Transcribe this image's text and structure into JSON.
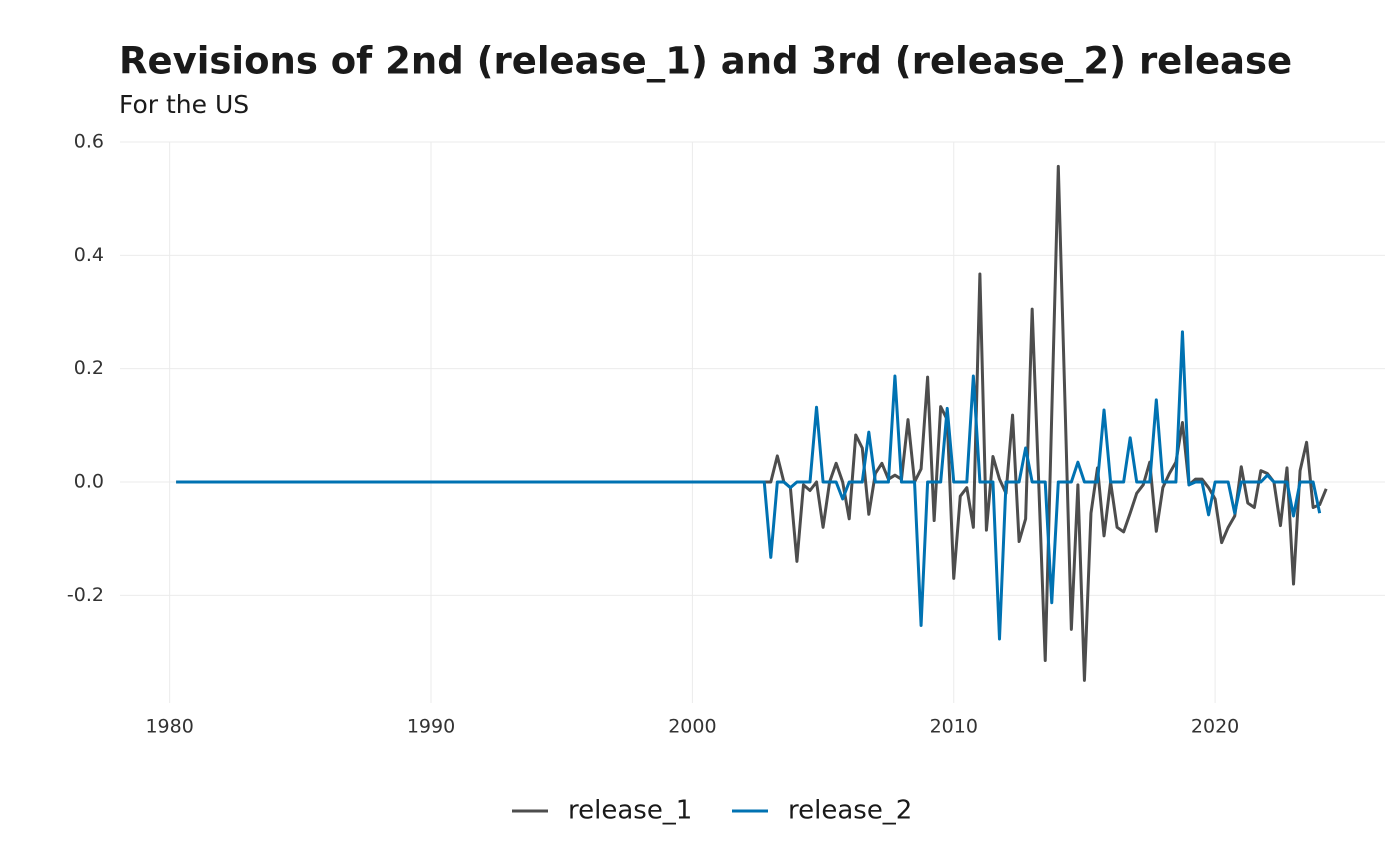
{
  "chart_data": {
    "type": "line",
    "title": "Revisions of 2nd (release_1) and 3rd (release_2) release",
    "subtitle": "For the US",
    "x": [
      1980.25,
      2002.75,
      2003.0,
      2003.25,
      2003.5,
      2003.75,
      2004.0,
      2004.25,
      2004.5,
      2004.75,
      2005.0,
      2005.25,
      2005.5,
      2005.75,
      2006.0,
      2006.25,
      2006.5,
      2006.75,
      2007.0,
      2007.25,
      2007.5,
      2007.75,
      2008.0,
      2008.25,
      2008.5,
      2008.75,
      2009.0,
      2009.25,
      2009.5,
      2009.75,
      2010.0,
      2010.25,
      2010.5,
      2010.75,
      2011.0,
      2011.25,
      2011.5,
      2011.75,
      2012.0,
      2012.25,
      2012.5,
      2012.75,
      2013.0,
      2013.25,
      2013.5,
      2013.75,
      2014.0,
      2014.25,
      2014.5,
      2014.75,
      2015.0,
      2015.25,
      2015.5,
      2015.75,
      2016.0,
      2016.25,
      2016.5,
      2016.75,
      2017.0,
      2017.25,
      2017.5,
      2017.75,
      2018.0,
      2018.25,
      2018.5,
      2018.75,
      2019.0,
      2019.25,
      2019.5,
      2019.75,
      2020.0,
      2020.25,
      2020.5,
      2020.75,
      2021.0,
      2021.25,
      2021.5,
      2021.75,
      2022.0,
      2022.25,
      2022.5,
      2022.75,
      2023.0,
      2023.25,
      2023.5,
      2023.75,
      2024.0,
      2024.25
    ],
    "series": [
      {
        "name": "release_1",
        "color": "#4d4d4d",
        "values": [
          0,
          0,
          0,
          0.046,
          0,
          -0.01,
          -0.14,
          -0.005,
          -0.015,
          0,
          -0.08,
          0,
          0.033,
          0,
          -0.065,
          0.083,
          0.06,
          -0.057,
          0.015,
          0.033,
          0.005,
          0.012,
          0.005,
          0.11,
          0,
          0.023,
          0.185,
          -0.068,
          0.133,
          0.11,
          -0.17,
          -0.025,
          -0.01,
          -0.08,
          0.367,
          -0.085,
          0.045,
          0.005,
          -0.02,
          0.118,
          -0.105,
          -0.065,
          0.305,
          0,
          -0.315,
          0.12,
          0.557,
          0.15,
          -0.26,
          -0.005,
          -0.35,
          -0.055,
          0.025,
          -0.095,
          0,
          -0.08,
          -0.088,
          -0.055,
          -0.02,
          -0.005,
          0.035,
          -0.087,
          -0.01,
          0.015,
          0.035,
          0.105,
          -0.005,
          0.005,
          0.005,
          -0.01,
          -0.03,
          -0.107,
          -0.08,
          -0.06,
          0.027,
          -0.037,
          -0.045,
          0.02,
          0.015,
          0,
          -0.077,
          0.025,
          -0.18,
          0.02,
          0.07,
          -0.045,
          -0.04,
          -0.012
        ]
      },
      {
        "name": "release_2",
        "color": "#0072b2",
        "values": [
          0,
          0,
          -0.133,
          0,
          0,
          -0.01,
          0,
          0,
          0,
          0.132,
          0,
          0,
          0,
          -0.03,
          0,
          0,
          0,
          0.088,
          0,
          0,
          0,
          0.187,
          0,
          0,
          0,
          -0.253,
          0,
          0,
          0,
          0.13,
          0,
          0,
          0,
          0.187,
          0,
          0,
          0,
          -0.277,
          0,
          0,
          0,
          0.06,
          0,
          0,
          0,
          -0.213,
          0,
          0,
          0,
          0.035,
          0,
          0,
          0,
          0.127,
          0,
          0,
          0,
          0.078,
          0,
          0,
          0,
          0.145,
          0,
          0,
          0,
          0.265,
          -0.005,
          0,
          0,
          -0.058,
          0,
          0,
          0,
          -0.055,
          0,
          0,
          0,
          0,
          0.012,
          0,
          0,
          0,
          -0.06,
          0,
          0,
          0,
          -0.055,
          null
        ]
      }
    ],
    "xlim": [
      1978.1,
      2026.5
    ],
    "xticks": [
      1980,
      1990,
      2000,
      2010,
      2020
    ],
    "ylim": [
      -0.39,
      0.6
    ],
    "yticks": [
      -0.2,
      {
        "value": 0,
        "label": "0.0"
      },
      0.2,
      0.4,
      0.6
    ],
    "grid": true,
    "legend": "bottom"
  }
}
